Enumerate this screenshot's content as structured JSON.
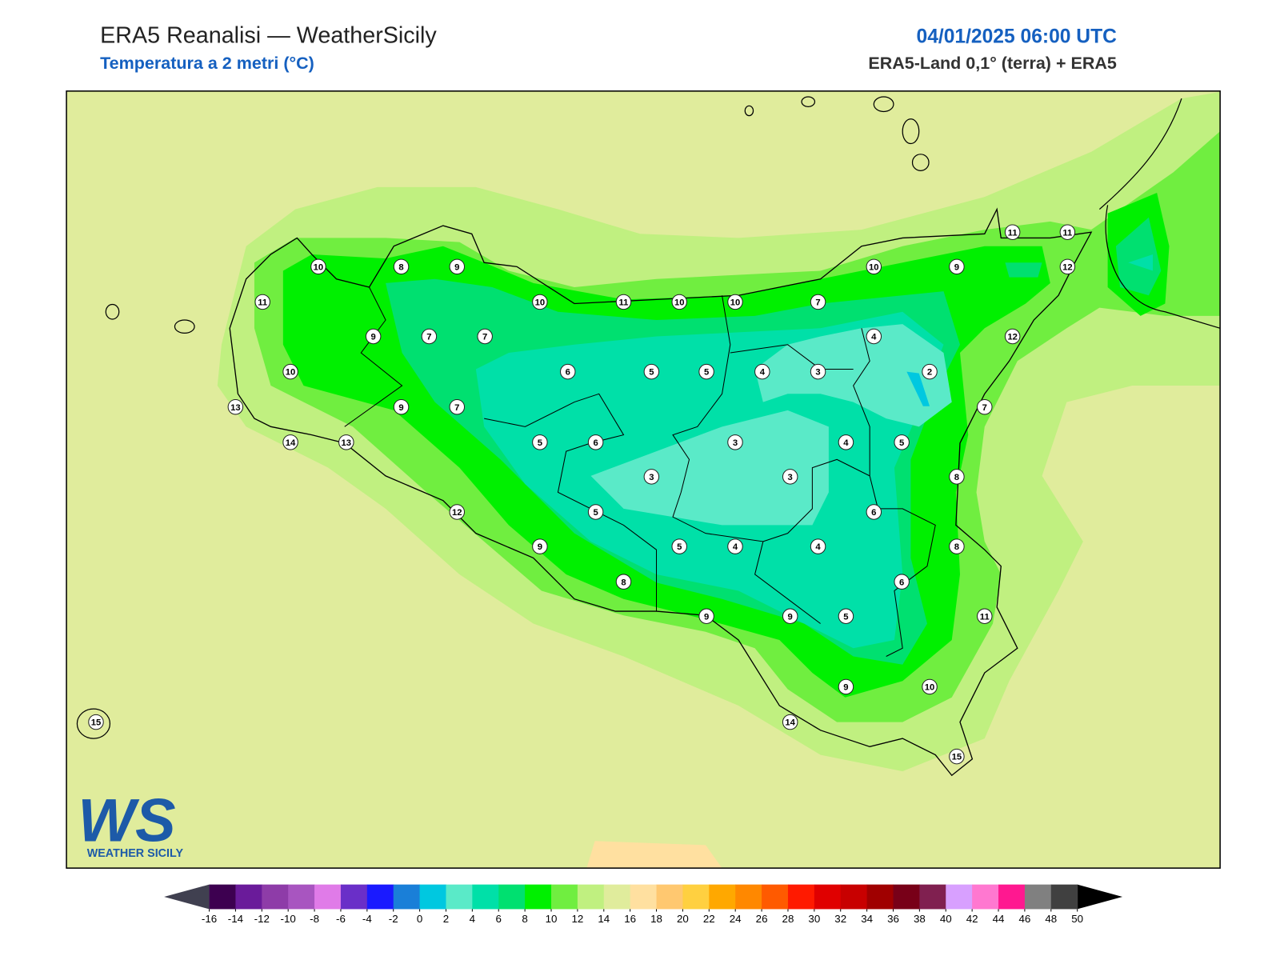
{
  "header": {
    "title": "ERA5 Reanalisi — WeatherSicily",
    "subtitle": "Temperatura a 2 metri (°C)",
    "datetime": "04/01/2025 06:00 UTC",
    "source": "ERA5-Land 0,1° (terra) + ERA5"
  },
  "stations": [
    10,
    8,
    9,
    11,
    9,
    7,
    7,
    10,
    13,
    9,
    7,
    14,
    13,
    10,
    11,
    10,
    10,
    7,
    10,
    9,
    11,
    11,
    12,
    4,
    12,
    6,
    5,
    5,
    4,
    3,
    2,
    7,
    5,
    6,
    3,
    4,
    5,
    3,
    3,
    8,
    12,
    5,
    6,
    9,
    5,
    4,
    4,
    8,
    8,
    6,
    9,
    9,
    5,
    11,
    9,
    10,
    14,
    15,
    15
  ],
  "colorbar": {
    "ticks": [
      -16,
      -14,
      -12,
      -10,
      -8,
      -6,
      -4,
      -2,
      0,
      2,
      4,
      6,
      8,
      10,
      12,
      14,
      16,
      18,
      20,
      22,
      24,
      26,
      28,
      30,
      32,
      34,
      36,
      38,
      40,
      42,
      44,
      46,
      48,
      50
    ],
    "colors": [
      "#3d0050",
      "#6a1b9a",
      "#8e3ca8",
      "#a855c0",
      "#e07be8",
      "#6a2fc8",
      "#1a1aff",
      "#1a7fd8",
      "#00c8e0",
      "#5aeac8",
      "#00e0a8",
      "#00e070",
      "#00f000",
      "#70ee40",
      "#c0f080",
      "#e0ec9c",
      "#ffe0a0",
      "#ffc870",
      "#ffd040",
      "#ffa800",
      "#ff8800",
      "#ff5a00",
      "#ff1a00",
      "#e00000",
      "#c80000",
      "#a00000",
      "#780018",
      "#802050",
      "#d8a0ff",
      "#ff78d0",
      "#ff1890",
      "#808080",
      "#404040"
    ],
    "under_color": "#404050",
    "over_color": "#000000"
  },
  "logo": {
    "mark": "WS",
    "name": "WEATHER SICILY"
  }
}
